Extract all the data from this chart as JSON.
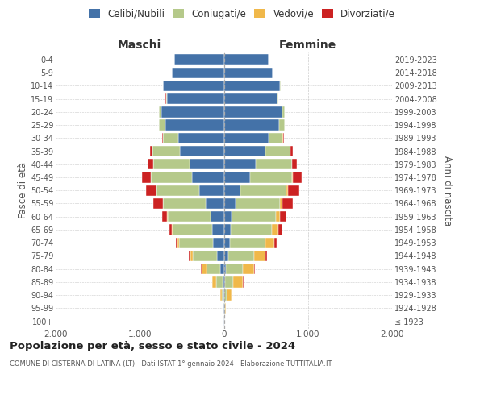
{
  "age_groups": [
    "100+",
    "95-99",
    "90-94",
    "85-89",
    "80-84",
    "75-79",
    "70-74",
    "65-69",
    "60-64",
    "55-59",
    "50-54",
    "45-49",
    "40-44",
    "35-39",
    "30-34",
    "25-29",
    "20-24",
    "15-19",
    "10-14",
    "5-9",
    "0-4"
  ],
  "birth_years": [
    "≤ 1923",
    "1924-1928",
    "1929-1933",
    "1934-1938",
    "1939-1943",
    "1944-1948",
    "1949-1953",
    "1954-1958",
    "1959-1963",
    "1964-1968",
    "1969-1973",
    "1974-1978",
    "1979-1983",
    "1984-1988",
    "1989-1993",
    "1994-1998",
    "1999-2003",
    "2004-2008",
    "2009-2013",
    "2014-2018",
    "2019-2023"
  ],
  "maschi": {
    "celibi": [
      2,
      3,
      8,
      15,
      40,
      80,
      130,
      140,
      160,
      220,
      290,
      380,
      410,
      520,
      540,
      700,
      740,
      680,
      720,
      620,
      590
    ],
    "coniugati": [
      2,
      5,
      20,
      80,
      170,
      290,
      400,
      470,
      510,
      500,
      510,
      490,
      430,
      330,
      180,
      70,
      30,
      10,
      3,
      2,
      1
    ],
    "vedovi": [
      0,
      2,
      15,
      40,
      50,
      30,
      20,
      10,
      5,
      5,
      3,
      2,
      2,
      1,
      1,
      0,
      0,
      0,
      0,
      0,
      0
    ],
    "divorziati": [
      0,
      0,
      1,
      3,
      10,
      15,
      20,
      30,
      55,
      110,
      120,
      100,
      60,
      30,
      10,
      5,
      2,
      1,
      0,
      0,
      0
    ]
  },
  "femmine": {
    "celibi": [
      2,
      3,
      5,
      10,
      25,
      50,
      70,
      80,
      90,
      140,
      200,
      310,
      380,
      490,
      530,
      660,
      700,
      640,
      670,
      580,
      530
    ],
    "coniugati": [
      2,
      8,
      30,
      100,
      200,
      310,
      420,
      490,
      530,
      530,
      540,
      500,
      430,
      300,
      170,
      60,
      25,
      8,
      2,
      1,
      1
    ],
    "vedovi": [
      2,
      15,
      60,
      120,
      130,
      130,
      110,
      80,
      50,
      30,
      20,
      10,
      5,
      2,
      1,
      1,
      0,
      0,
      0,
      0,
      0
    ],
    "divorziati": [
      0,
      0,
      2,
      5,
      10,
      20,
      30,
      50,
      75,
      120,
      140,
      110,
      50,
      25,
      10,
      5,
      2,
      1,
      0,
      0,
      0
    ]
  },
  "colors": {
    "celibi": "#4472a8",
    "coniugati": "#b5c98a",
    "vedovi": "#f0b84a",
    "divorziati": "#cc2222"
  },
  "legend_labels": [
    "Celibi/Nubili",
    "Coniugati/e",
    "Vedovi/e",
    "Divorziati/e"
  ],
  "xlim": 2000,
  "maschi_label": "Maschi",
  "femmine_label": "Femmine",
  "ylabel_left": "Fasce di età",
  "ylabel_right": "Anni di nascita",
  "title": "Popolazione per età, sesso e stato civile - 2024",
  "subtitle": "COMUNE DI CISTERNA DI LATINA (LT) - Dati ISTAT 1° gennaio 2024 - Elaborazione TUTTITALIA.IT",
  "bg_color": "#ffffff",
  "grid_color": "#cccccc"
}
